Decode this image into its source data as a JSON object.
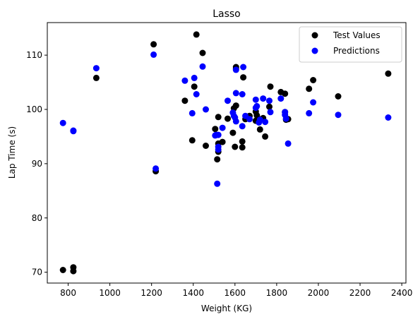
{
  "chart_data": {
    "type": "scatter",
    "title": "Lasso",
    "xlabel": "Weight (KG)",
    "ylabel": "Lap Time (s)",
    "xlim": [
      700,
      2420
    ],
    "ylim": [
      68,
      116
    ],
    "xticks": [
      800,
      1000,
      1200,
      1400,
      1600,
      1800,
      2000,
      2200,
      2400
    ],
    "yticks": [
      70,
      80,
      90,
      100,
      110
    ],
    "grid": false,
    "legend_position": "top-right",
    "series": [
      {
        "name": "Test Values",
        "color": "#000000",
        "points": [
          [
            775,
            70.4
          ],
          [
            825,
            70.2
          ],
          [
            825,
            70.9
          ],
          [
            935,
            105.8
          ],
          [
            1210,
            112.0
          ],
          [
            1220,
            88.6
          ],
          [
            1360,
            101.6
          ],
          [
            1395,
            94.3
          ],
          [
            1405,
            104.2
          ],
          [
            1415,
            113.8
          ],
          [
            1445,
            110.4
          ],
          [
            1460,
            93.3
          ],
          [
            1505,
            96.4
          ],
          [
            1510,
            95.3
          ],
          [
            1515,
            90.8
          ],
          [
            1520,
            92.2
          ],
          [
            1520,
            93.7
          ],
          [
            1520,
            98.6
          ],
          [
            1540,
            94.0
          ],
          [
            1565,
            98.3
          ],
          [
            1590,
            95.7
          ],
          [
            1595,
            100.2
          ],
          [
            1600,
            93.1
          ],
          [
            1605,
            100.7
          ],
          [
            1605,
            107.5
          ],
          [
            1605,
            107.8
          ],
          [
            1635,
            93.0
          ],
          [
            1635,
            94.1
          ],
          [
            1640,
            105.9
          ],
          [
            1650,
            98.2
          ],
          [
            1670,
            98.8
          ],
          [
            1700,
            99.6
          ],
          [
            1700,
            97.9
          ],
          [
            1705,
            98.9
          ],
          [
            1715,
            98.2
          ],
          [
            1720,
            96.3
          ],
          [
            1735,
            98.4
          ],
          [
            1745,
            95.0
          ],
          [
            1765,
            100.5
          ],
          [
            1770,
            104.2
          ],
          [
            1820,
            103.2
          ],
          [
            1840,
            102.9
          ],
          [
            1840,
            99.5
          ],
          [
            1845,
            98.1
          ],
          [
            1855,
            98.2
          ],
          [
            1955,
            103.8
          ],
          [
            1975,
            105.4
          ],
          [
            2095,
            102.4
          ],
          [
            2335,
            106.6
          ]
        ]
      },
      {
        "name": "Predictions",
        "color": "#0000ff",
        "points": [
          [
            775,
            97.5
          ],
          [
            825,
            96.1
          ],
          [
            825,
            96.0
          ],
          [
            935,
            107.6
          ],
          [
            1210,
            110.1
          ],
          [
            1220,
            89.1
          ],
          [
            1360,
            105.3
          ],
          [
            1395,
            99.3
          ],
          [
            1405,
            105.8
          ],
          [
            1415,
            102.8
          ],
          [
            1445,
            107.9
          ],
          [
            1460,
            100.0
          ],
          [
            1505,
            95.2
          ],
          [
            1510,
            95.3
          ],
          [
            1515,
            86.3
          ],
          [
            1520,
            92.6
          ],
          [
            1520,
            93.1
          ],
          [
            1520,
            95.3
          ],
          [
            1540,
            96.6
          ],
          [
            1565,
            101.6
          ],
          [
            1590,
            99.4
          ],
          [
            1595,
            98.8
          ],
          [
            1600,
            98.5
          ],
          [
            1605,
            97.8
          ],
          [
            1605,
            103.0
          ],
          [
            1605,
            107.3
          ],
          [
            1635,
            96.9
          ],
          [
            1635,
            102.8
          ],
          [
            1640,
            107.8
          ],
          [
            1650,
            98.8
          ],
          [
            1670,
            98.2
          ],
          [
            1700,
            101.8
          ],
          [
            1700,
            100.3
          ],
          [
            1705,
            100.6
          ],
          [
            1715,
            97.6
          ],
          [
            1720,
            98.1
          ],
          [
            1735,
            102.0
          ],
          [
            1745,
            97.7
          ],
          [
            1765,
            101.6
          ],
          [
            1770,
            99.5
          ],
          [
            1820,
            102.0
          ],
          [
            1840,
            99.0
          ],
          [
            1840,
            99.5
          ],
          [
            1845,
            98.3
          ],
          [
            1855,
            93.7
          ],
          [
            1955,
            99.3
          ],
          [
            1975,
            101.3
          ],
          [
            2095,
            99.0
          ],
          [
            2335,
            98.5
          ]
        ]
      }
    ]
  }
}
